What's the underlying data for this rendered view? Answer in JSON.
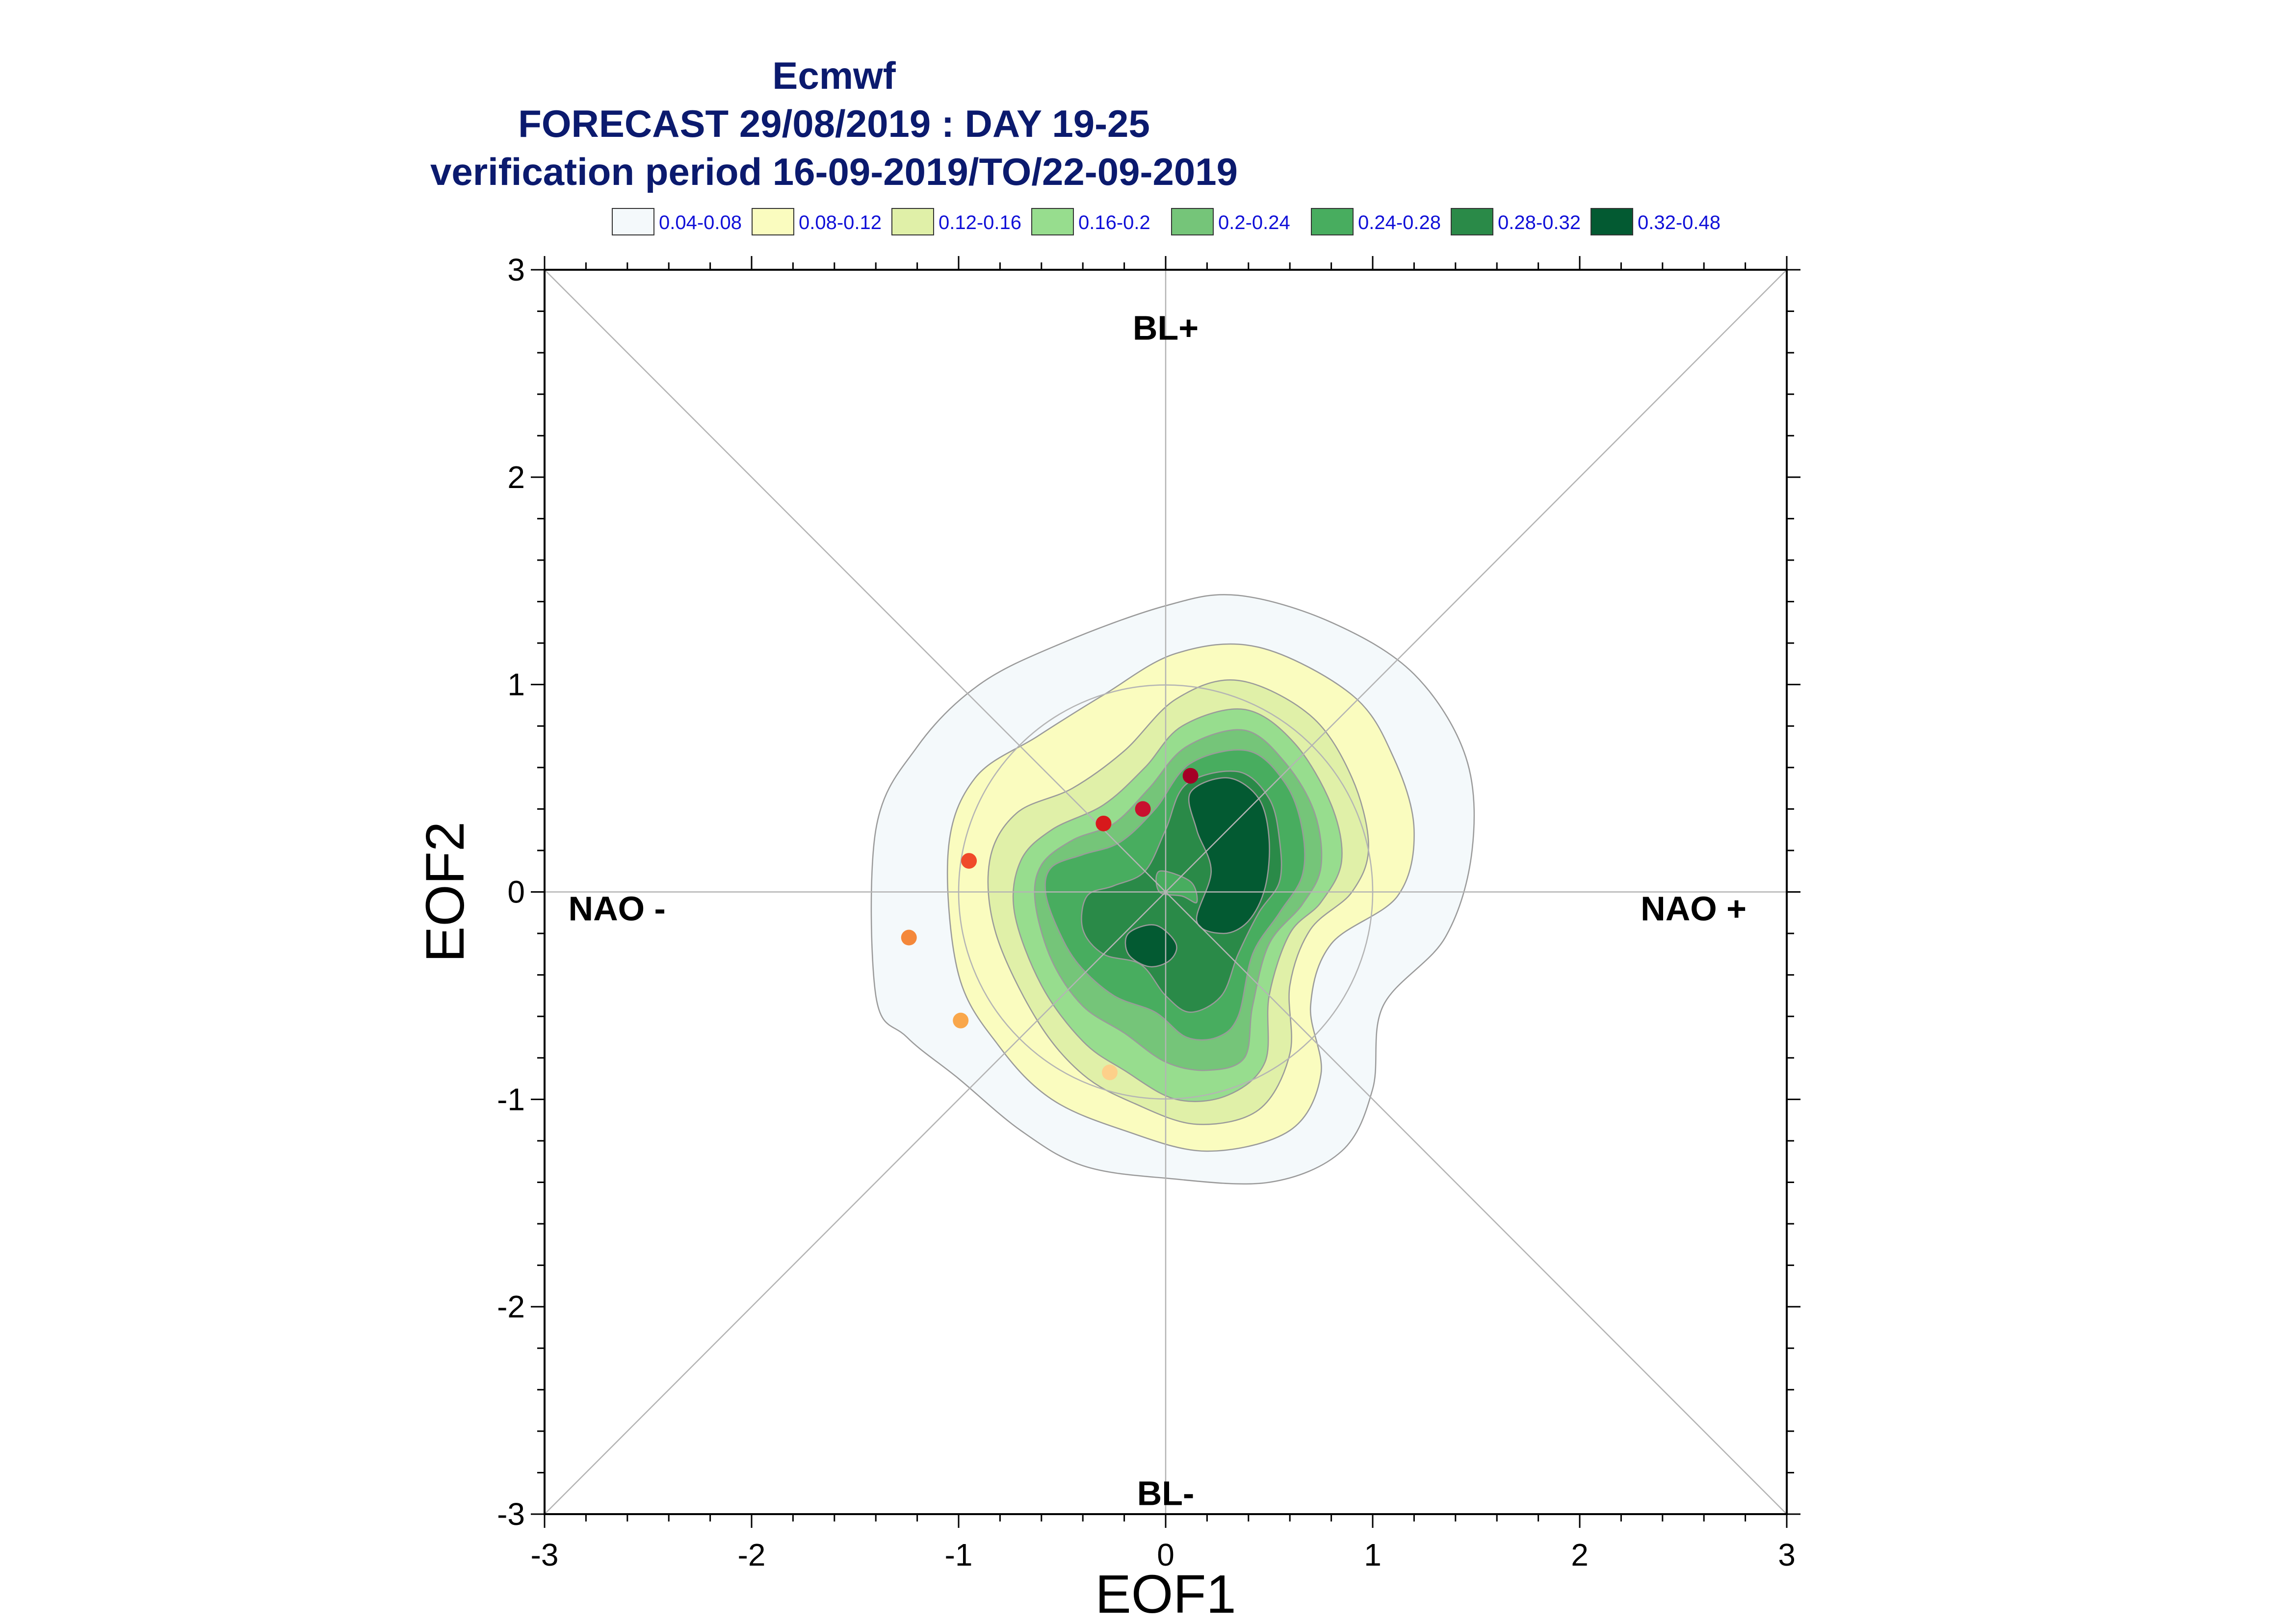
{
  "chart_data": {
    "type": "contour",
    "title_lines": [
      "Ecmwf",
      "FORECAST 29/08/2019 : DAY 19-25",
      "verification period 16-09-2019/TO/22-09-2019"
    ],
    "xlabel": "EOF1",
    "ylabel": "EOF2",
    "xlim": [
      -3,
      3
    ],
    "ylim": [
      -3,
      3
    ],
    "x_ticks": [
      "-3",
      "-2",
      "-1",
      "0",
      "1",
      "2",
      "3"
    ],
    "y_ticks": [
      "-3",
      "-2",
      "-1",
      "0",
      "1",
      "2",
      "3"
    ],
    "grid": false,
    "legend_position": "top",
    "legend": [
      {
        "label": "0.04-0.08",
        "color": "#f4f9fb"
      },
      {
        "label": "0.08-0.12",
        "color": "#fafcbf"
      },
      {
        "label": "0.12-0.16",
        "color": "#e0f0a8"
      },
      {
        "label": "0.16-0.2",
        "color": "#97dd8e"
      },
      {
        "label": "0.2-0.24",
        "color": "#75c579"
      },
      {
        "label": "0.24-0.28",
        "color": "#48ad5f"
      },
      {
        "label": "0.28-0.32",
        "color": "#2a8a48"
      },
      {
        "label": "0.32-0.48",
        "color": "#035a32"
      }
    ],
    "annotations": [
      {
        "text": "BL+",
        "x": 0,
        "y": 2.72
      },
      {
        "text": "BL-",
        "x": 0,
        "y": -2.9
      },
      {
        "text": "NAO -",
        "x": -2.65,
        "y": -0.08
      },
      {
        "text": "NAO +",
        "x": 2.55,
        "y": -0.08
      }
    ],
    "points": [
      {
        "x": 0.12,
        "y": 0.56,
        "color": "#a50026"
      },
      {
        "x": -0.11,
        "y": 0.4,
        "color": "#c8102e"
      },
      {
        "x": -0.3,
        "y": 0.33,
        "color": "#d7191c"
      },
      {
        "x": -0.95,
        "y": 0.15,
        "color": "#f04a2a"
      },
      {
        "x": -1.24,
        "y": -0.22,
        "color": "#f4883a"
      },
      {
        "x": -0.99,
        "y": -0.62,
        "color": "#f9a74b"
      },
      {
        "x": -0.27,
        "y": -0.87,
        "color": "#fdd08a"
      }
    ],
    "levels": [
      {
        "color": "#f4f9fb",
        "polygons": [
          [
            [
              -1.4,
              -0.5
            ],
            [
              -1.4,
              0.3
            ],
            [
              -1.2,
              0.7
            ],
            [
              -0.9,
              1.0
            ],
            [
              -0.5,
              1.2
            ],
            [
              0.0,
              1.38
            ],
            [
              0.35,
              1.43
            ],
            [
              0.8,
              1.3
            ],
            [
              1.2,
              1.05
            ],
            [
              1.45,
              0.65
            ],
            [
              1.48,
              0.2
            ],
            [
              1.35,
              -0.22
            ],
            [
              1.05,
              -0.55
            ],
            [
              1.0,
              -0.95
            ],
            [
              0.85,
              -1.25
            ],
            [
              0.5,
              -1.4
            ],
            [
              0.0,
              -1.38
            ],
            [
              -0.4,
              -1.32
            ],
            [
              -0.7,
              -1.15
            ],
            [
              -1.0,
              -0.9
            ],
            [
              -1.25,
              -0.7
            ]
          ]
        ]
      },
      {
        "color": "#fafcbf",
        "polygons": [
          [
            [
              -1.0,
              -0.4
            ],
            [
              -1.05,
              0.2
            ],
            [
              -0.92,
              0.55
            ],
            [
              -0.62,
              0.75
            ],
            [
              -0.3,
              0.95
            ],
            [
              0.05,
              1.15
            ],
            [
              0.45,
              1.18
            ],
            [
              0.9,
              0.95
            ],
            [
              1.1,
              0.65
            ],
            [
              1.2,
              0.3
            ],
            [
              1.12,
              -0.02
            ],
            [
              0.8,
              -0.25
            ],
            [
              0.7,
              -0.55
            ],
            [
              0.75,
              -0.88
            ],
            [
              0.6,
              -1.15
            ],
            [
              0.2,
              -1.25
            ],
            [
              -0.2,
              -1.15
            ],
            [
              -0.55,
              -1.0
            ],
            [
              -0.8,
              -0.75
            ]
          ]
        ]
      },
      {
        "color": "#e0f0a8",
        "polygons": [
          [
            [
              -0.82,
              -0.2
            ],
            [
              -0.85,
              0.15
            ],
            [
              -0.72,
              0.38
            ],
            [
              -0.45,
              0.5
            ],
            [
              -0.2,
              0.68
            ],
            [
              0.05,
              0.93
            ],
            [
              0.35,
              1.02
            ],
            [
              0.7,
              0.85
            ],
            [
              0.9,
              0.55
            ],
            [
              0.98,
              0.22
            ],
            [
              0.9,
              0.0
            ],
            [
              0.7,
              -0.18
            ],
            [
              0.6,
              -0.45
            ],
            [
              0.6,
              -0.78
            ],
            [
              0.45,
              -1.05
            ],
            [
              0.15,
              -1.12
            ],
            [
              -0.15,
              -1.02
            ],
            [
              -0.4,
              -0.88
            ],
            [
              -0.62,
              -0.62
            ]
          ]
        ]
      },
      {
        "color": "#97dd8e",
        "polygons": [
          [
            [
              -0.73,
              -0.1
            ],
            [
              -0.7,
              0.15
            ],
            [
              -0.55,
              0.3
            ],
            [
              -0.3,
              0.42
            ],
            [
              -0.1,
              0.6
            ],
            [
              0.08,
              0.8
            ],
            [
              0.38,
              0.88
            ],
            [
              0.62,
              0.72
            ],
            [
              0.8,
              0.42
            ],
            [
              0.85,
              0.15
            ],
            [
              0.75,
              -0.05
            ],
            [
              0.6,
              -0.2
            ],
            [
              0.5,
              -0.5
            ],
            [
              0.48,
              -0.82
            ],
            [
              0.3,
              -0.98
            ],
            [
              0.05,
              -1.0
            ],
            [
              -0.2,
              -0.86
            ],
            [
              -0.4,
              -0.72
            ],
            [
              -0.6,
              -0.45
            ]
          ]
        ]
      },
      {
        "color": "#75c579",
        "polygons": [
          [
            [
              -0.63,
              -0.05
            ],
            [
              -0.6,
              0.13
            ],
            [
              -0.45,
              0.25
            ],
            [
              -0.25,
              0.33
            ],
            [
              -0.08,
              0.5
            ],
            [
              0.1,
              0.7
            ],
            [
              0.38,
              0.78
            ],
            [
              0.58,
              0.62
            ],
            [
              0.72,
              0.38
            ],
            [
              0.75,
              0.12
            ],
            [
              0.66,
              -0.06
            ],
            [
              0.5,
              -0.25
            ],
            [
              0.42,
              -0.55
            ],
            [
              0.38,
              -0.8
            ],
            [
              0.2,
              -0.86
            ],
            [
              0.0,
              -0.82
            ],
            [
              -0.2,
              -0.68
            ],
            [
              -0.4,
              -0.55
            ],
            [
              -0.55,
              -0.33
            ]
          ]
        ]
      },
      {
        "color": "#48ad5f",
        "polygons": [
          [
            [
              -0.58,
              0.0
            ],
            [
              -0.55,
              0.12
            ],
            [
              -0.4,
              0.18
            ],
            [
              -0.22,
              0.24
            ],
            [
              -0.05,
              0.4
            ],
            [
              0.12,
              0.62
            ],
            [
              0.4,
              0.68
            ],
            [
              0.58,
              0.52
            ],
            [
              0.66,
              0.3
            ],
            [
              0.66,
              0.08
            ],
            [
              0.55,
              -0.1
            ],
            [
              0.42,
              -0.3
            ],
            [
              0.35,
              -0.6
            ],
            [
              0.25,
              -0.7
            ],
            [
              0.1,
              -0.7
            ],
            [
              -0.05,
              -0.58
            ],
            [
              -0.25,
              -0.5
            ],
            [
              -0.42,
              -0.35
            ],
            [
              -0.52,
              -0.18
            ]
          ]
        ]
      },
      {
        "color": "#2a8a48",
        "polygons": [
          [
            [
              -0.38,
              -0.02
            ],
            [
              -0.25,
              0.03
            ],
            [
              -0.1,
              0.1
            ],
            [
              0.0,
              0.3
            ],
            [
              0.1,
              0.52
            ],
            [
              0.35,
              0.58
            ],
            [
              0.5,
              0.45
            ],
            [
              0.55,
              0.25
            ],
            [
              0.55,
              0.05
            ],
            [
              0.45,
              -0.1
            ],
            [
              0.35,
              -0.3
            ],
            [
              0.27,
              -0.5
            ],
            [
              0.12,
              -0.58
            ],
            [
              0.0,
              -0.5
            ],
            [
              -0.12,
              -0.35
            ],
            [
              -0.3,
              -0.3
            ],
            [
              -0.4,
              -0.18
            ]
          ]
        ]
      },
      {
        "color": "#035a32",
        "polygons": [
          [
            [
              0.15,
              -0.14
            ],
            [
              0.22,
              0.1
            ],
            [
              0.15,
              0.3
            ],
            [
              0.12,
              0.48
            ],
            [
              0.3,
              0.55
            ],
            [
              0.45,
              0.45
            ],
            [
              0.5,
              0.25
            ],
            [
              0.48,
              0.02
            ],
            [
              0.4,
              -0.14
            ],
            [
              0.28,
              -0.2
            ]
          ],
          [
            [
              -0.18,
              -0.2
            ],
            [
              -0.05,
              -0.16
            ],
            [
              0.05,
              -0.25
            ],
            [
              0.02,
              -0.33
            ],
            [
              -0.08,
              -0.36
            ],
            [
              -0.18,
              -0.3
            ]
          ]
        ]
      },
      {
        "color": "#48ad5f",
        "polygons": [
          [
            [
              -0.03,
              0.1
            ],
            [
              0.12,
              0.05
            ],
            [
              0.15,
              -0.05
            ],
            [
              0.08,
              -0.02
            ],
            [
              -0.03,
              0.0
            ]
          ]
        ]
      }
    ]
  }
}
